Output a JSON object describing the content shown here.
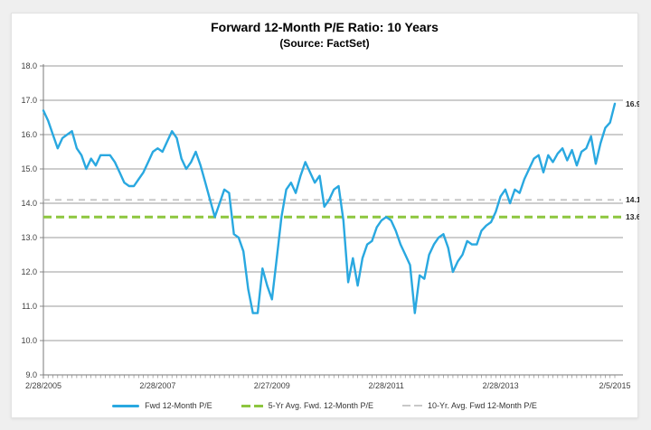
{
  "chart": {
    "title": "Forward 12-Month P/E Ratio: 10 Years",
    "subtitle": "(Source: FactSet)"
  },
  "colors": {
    "background": "#efefef",
    "card_background": "#ffffff",
    "card_border": "#e3e3e3",
    "gridline": "#9b9b9b",
    "axis_line": "#7a7a7a",
    "tick": "#8a8a8a",
    "axis_text": "#3f3f3f",
    "value_label_text": "#1f1f1f",
    "fwd_pe_blue": "#29a8e0",
    "avg5_green": "#8dc63f",
    "avg10_gray": "#c8c8c8"
  },
  "chart_data": {
    "type": "line",
    "title": "Forward 12-Month P/E Ratio: 10 Years",
    "subtitle": "(Source: FactSet)",
    "xlabel": "",
    "ylabel": "",
    "ylim": [
      9.0,
      18.0
    ],
    "y_tick_step": 1.0,
    "y_tick_labels": [
      "9.0",
      "10.0",
      "11.0",
      "12.0",
      "13.0",
      "14.0",
      "15.0",
      "16.0",
      "17.0",
      "18.0"
    ],
    "x_tick_labels": [
      "2/28/2005",
      "2/28/2007",
      "2/27/2009",
      "2/28/2011",
      "2/28/2013",
      "2/5/2015"
    ],
    "x_tick_positions_months": [
      0,
      24,
      48,
      72,
      96,
      120
    ],
    "x_start_label": "2/28/2005",
    "x_end_label": "2/5/2015",
    "frequency": "monthly",
    "grid": true,
    "legend_position": "bottom",
    "series": [
      {
        "name": "Fwd 12-Month P/E",
        "style": "solid",
        "color_key": "fwd_pe_blue",
        "end_label": "16.9",
        "values": [
          16.7,
          16.4,
          16.0,
          15.6,
          15.9,
          16.0,
          16.1,
          15.6,
          15.4,
          15.0,
          15.3,
          15.1,
          15.4,
          15.4,
          15.4,
          15.2,
          14.9,
          14.6,
          14.5,
          14.5,
          14.7,
          14.9,
          15.2,
          15.5,
          15.6,
          15.5,
          15.8,
          16.1,
          15.9,
          15.3,
          15.0,
          15.2,
          15.5,
          15.1,
          14.6,
          14.1,
          13.6,
          14.0,
          14.4,
          14.3,
          13.1,
          13.0,
          12.6,
          11.5,
          10.8,
          10.8,
          12.1,
          11.6,
          11.2,
          12.4,
          13.6,
          14.4,
          14.6,
          14.3,
          14.8,
          15.2,
          14.9,
          14.6,
          14.8,
          13.9,
          14.1,
          14.4,
          14.5,
          13.5,
          11.7,
          12.4,
          11.6,
          12.4,
          12.8,
          12.9,
          13.3,
          13.5,
          13.6,
          13.5,
          13.2,
          12.8,
          12.5,
          12.2,
          10.8,
          11.9,
          11.8,
          12.5,
          12.8,
          13.0,
          13.1,
          12.7,
          12.0,
          12.3,
          12.5,
          12.9,
          12.8,
          12.8,
          13.2,
          13.35,
          13.45,
          13.75,
          14.2,
          14.4,
          14.0,
          14.4,
          14.3,
          14.7,
          15.0,
          15.3,
          15.4,
          14.9,
          15.4,
          15.2,
          15.45,
          15.6,
          15.25,
          15.55,
          15.1,
          15.5,
          15.6,
          15.95,
          15.15,
          15.75,
          16.2,
          16.35,
          16.9
        ]
      },
      {
        "name": "5-Yr Avg. Fwd. 12-Month P/E",
        "style": "dashed",
        "color_key": "avg5_green",
        "value": 13.6,
        "end_label": "13.6"
      },
      {
        "name": "10-Yr. Avg. Fwd 12-Month P/E",
        "style": "dashed",
        "color_key": "avg10_gray",
        "value": 14.1,
        "end_label": "14.1"
      }
    ]
  }
}
